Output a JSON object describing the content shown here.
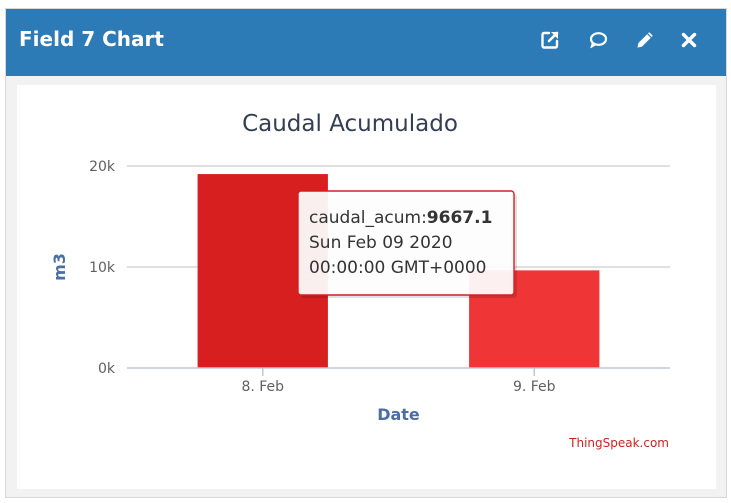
{
  "window": {
    "title": "Field 7 Chart",
    "icons": [
      "external-link-icon",
      "comment-icon",
      "pencil-icon",
      "close-icon"
    ]
  },
  "chart_data": {
    "type": "bar",
    "title": "Caudal Acumulado",
    "xlabel": "Date",
    "ylabel": "m3",
    "categories": [
      "8. Feb",
      "9. Feb"
    ],
    "series": [
      {
        "name": "caudal_acum",
        "values": [
          19200,
          9667.1
        ],
        "colors": [
          "#d71f1f",
          "#ef3535"
        ]
      }
    ],
    "ylim": [
      0,
      20000
    ],
    "yticks": [
      0,
      10000,
      20000
    ],
    "ytick_labels": [
      "0k",
      "10k",
      "20k"
    ],
    "grid": true,
    "tooltip": {
      "series_label": "caudal_acum:",
      "value": "9667.1",
      "date": "Sun Feb 09 2020",
      "time": "00:00:00 GMT+0000",
      "border_color": "#d71f1f"
    },
    "credit": "ThingSpeak.com"
  }
}
